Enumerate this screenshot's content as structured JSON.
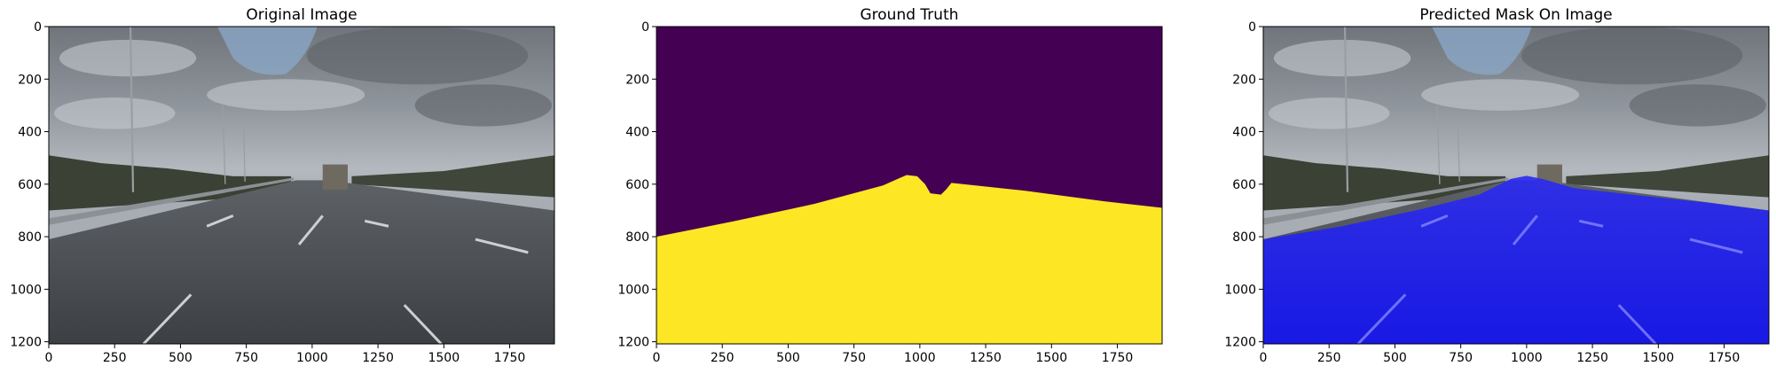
{
  "chart_data": [
    {
      "type": "image",
      "title": "Original Image",
      "xlim": [
        0,
        1920
      ],
      "ylim": [
        1208,
        0
      ],
      "xticks": [
        0,
        250,
        500,
        750,
        1000,
        1250,
        1500,
        1750
      ],
      "yticks": [
        0,
        200,
        400,
        600,
        800,
        1000,
        1200
      ],
      "xlabel": "",
      "ylabel": ""
    },
    {
      "type": "image",
      "title": "Ground Truth",
      "xlim": [
        0,
        1920
      ],
      "ylim": [
        1208,
        0
      ],
      "xticks": [
        0,
        250,
        500,
        750,
        1000,
        1250,
        1500,
        1750
      ],
      "yticks": [
        0,
        200,
        400,
        600,
        800,
        1000,
        1200
      ],
      "xlabel": "",
      "ylabel": "",
      "mask_colors": {
        "background": "#440154",
        "road": "#fde725"
      },
      "road_boundary": [
        [
          0,
          800
        ],
        [
          300,
          740
        ],
        [
          600,
          675
        ],
        [
          860,
          605
        ],
        [
          950,
          565
        ],
        [
          990,
          570
        ],
        [
          1020,
          600
        ],
        [
          1040,
          635
        ],
        [
          1080,
          640
        ],
        [
          1100,
          620
        ],
        [
          1120,
          595
        ],
        [
          1400,
          625
        ],
        [
          1700,
          665
        ],
        [
          1920,
          690
        ]
      ]
    },
    {
      "type": "image",
      "title": "Predicted Mask On Image",
      "xlim": [
        0,
        1920
      ],
      "ylim": [
        1208,
        0
      ],
      "xticks": [
        0,
        250,
        500,
        750,
        1000,
        1250,
        1500,
        1750
      ],
      "yticks": [
        0,
        200,
        400,
        600,
        800,
        1000,
        1200
      ],
      "xlabel": "",
      "ylabel": "",
      "mask_color": "#1f1fff",
      "road_boundary": [
        [
          0,
          810
        ],
        [
          300,
          760
        ],
        [
          600,
          695
        ],
        [
          820,
          640
        ],
        [
          940,
          580
        ],
        [
          1000,
          568
        ],
        [
          1060,
          580
        ],
        [
          1180,
          615
        ],
        [
          1400,
          640
        ],
        [
          1700,
          672
        ],
        [
          1920,
          700
        ]
      ]
    }
  ]
}
